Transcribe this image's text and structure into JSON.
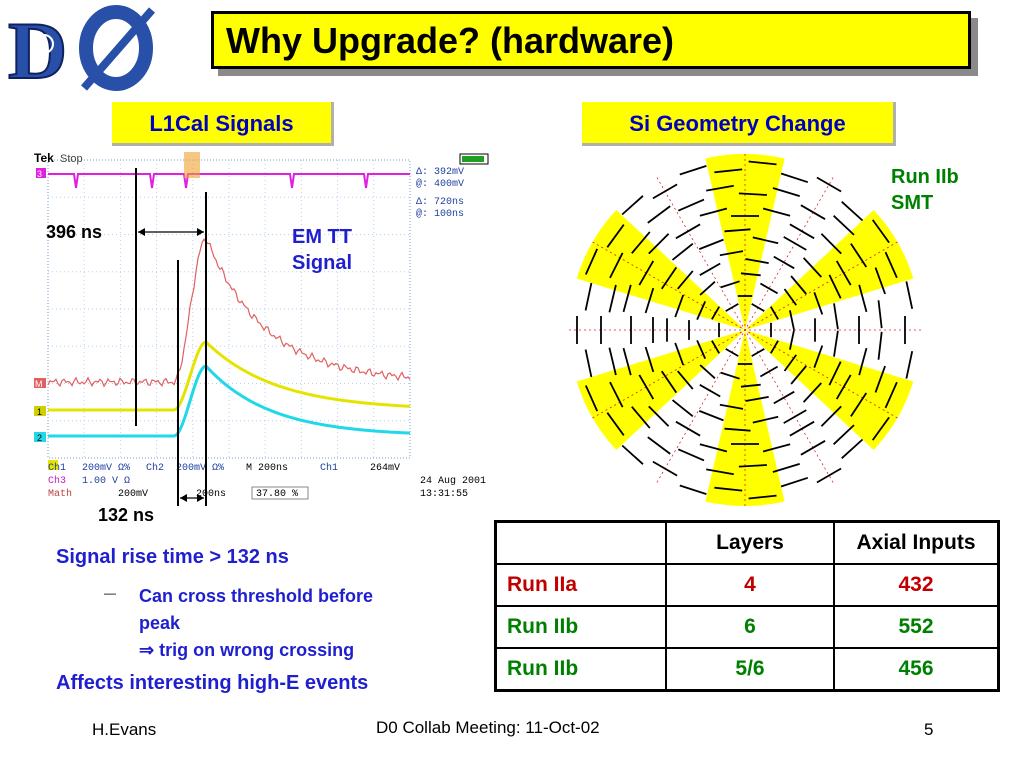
{
  "slide": {
    "title": "Why Upgrade? (hardware)",
    "logo_text": "DØ",
    "left_panel_label": "L1Cal Signals",
    "right_panel_label": "Si Geometry Change"
  },
  "scope": {
    "brand": "Tek",
    "mode": "Stop",
    "channel_marker": "3",
    "meas1": "Δ:   392mV",
    "meas2": "@:   400mV",
    "meas3": "Δ:    720ns",
    "meas4": "@:    100ns",
    "ch1": "Ch1",
    "ch1_scale": "200mV Ω%",
    "ch2": "Ch2",
    "ch2_scale": "200mV Ω%",
    "timebase": "M 200ns",
    "trig_ch": "Ch1",
    "trig_level": "264mV",
    "ch3": "Ch3",
    "ch3_scale": "1.00 V Ω",
    "math": "Math",
    "math_scale": "200mV",
    "math_time": "200ns",
    "percent": "37.80 %",
    "date": "24 Aug 2001",
    "time": "13:31:55",
    "marker_m": "M",
    "marker_1": "1",
    "marker_2": "2"
  },
  "annotations": {
    "ns396": "396 ns",
    "ns132": "132 ns",
    "em_tt_1": "EM TT",
    "em_tt_2": "Signal",
    "run_iib_1": "Run IIb",
    "run_iib_2": "SMT"
  },
  "bullets": {
    "b1": "Signal rise time > 132 ns",
    "sub_dash": "—",
    "sub1": "Can cross threshold before",
    "sub2": "peak",
    "sub3": "⇒ trig on wrong crossing",
    "b2": "Affects interesting high-E events"
  },
  "table": {
    "headers": [
      "",
      "Layers",
      "Axial Inputs"
    ],
    "rows": [
      {
        "label": "Run IIa",
        "layers": "4",
        "axial": "432"
      },
      {
        "label": "Run IIb",
        "layers": "6",
        "axial": "552"
      },
      {
        "label": "Run IIb",
        "layers": "5/6",
        "axial": "456"
      }
    ]
  },
  "footer": {
    "author": "H.Evans",
    "meeting": "D0 Collab Meeting: 11-Oct-02",
    "page": "5"
  },
  "colors": {
    "accent_yellow": "#ffff00",
    "text_blue": "#1f1fd0",
    "text_green": "#008000",
    "text_red": "#c00000",
    "trace_red": "#e05050",
    "trace_yellow": "#e0e000",
    "trace_cyan": "#20d8e8",
    "trace_magenta": "#e020e0"
  }
}
